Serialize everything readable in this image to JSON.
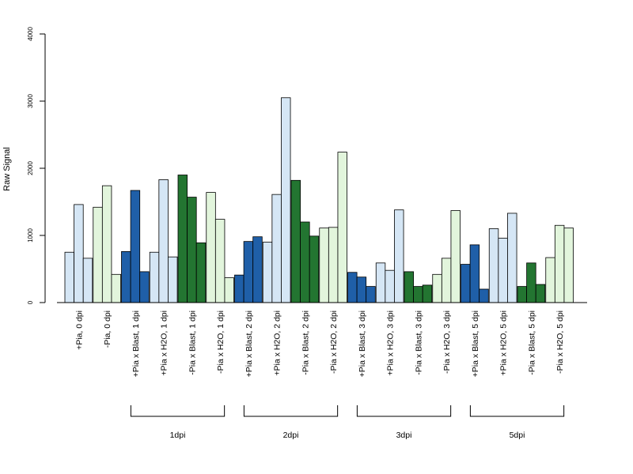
{
  "chart_data": {
    "type": "bar",
    "ylabel": "Raw Signal",
    "ylim": [
      0,
      4000
    ],
    "yticks": [
      "0",
      "1000",
      "2000",
      "3000",
      "4000"
    ],
    "categories": [
      "+Pia, 0 dpi",
      "-Pia, 0 dpi",
      "+Pia x Blast, 1 dpi",
      "+Pia x H2O, 1 dpi",
      "-Pia x Blast, 1 dpi",
      "-Pia x H2O, 1 dpi",
      "+Pia x Blast, 2 dpi",
      "+Pia x H2O, 2 dpi",
      "-Pia x Blast, 2 dpi",
      "-Pia x H2O, 2 dpi",
      "+Pia x Blast, 3 dpi",
      "+Pia x H2O, 3 dpi",
      "-Pia x Blast, 3 dpi",
      "-Pia x H2O, 3 dpi",
      "+Pia x Blast, 5 dpi",
      "+Pia x H2O, 5 dpi",
      "-Pia x Blast, 5 dpi",
      "-Pia x H2O, 5 dpi"
    ],
    "values": [
      [
        750,
        1460,
        660
      ],
      [
        1420,
        1740,
        420
      ],
      [
        760,
        1670,
        460
      ],
      [
        750,
        1830,
        680
      ],
      [
        1900,
        1570,
        890
      ],
      [
        1640,
        1240,
        370
      ],
      [
        410,
        910,
        980
      ],
      [
        900,
        1610,
        3050
      ],
      [
        1820,
        1200,
        990
      ],
      [
        1110,
        1120,
        2240
      ],
      [
        450,
        380,
        240
      ],
      [
        590,
        480,
        1380
      ],
      [
        460,
        240,
        260
      ],
      [
        420,
        660,
        1370
      ],
      [
        570,
        860,
        200
      ],
      [
        1100,
        960,
        1330
      ],
      [
        240,
        590,
        270
      ],
      [
        670,
        1150,
        1110
      ]
    ],
    "bar_colors": [
      "#d5e6f5",
      "#e2f5dc",
      "#1f5fa8",
      "#d5e6f5",
      "#237531",
      "#e2f5dc",
      "#1f5fa8",
      "#d5e6f5",
      "#237531",
      "#e2f5dc",
      "#1f5fa8",
      "#d5e6f5",
      "#237531",
      "#e2f5dc",
      "#1f5fa8",
      "#d5e6f5",
      "#237531",
      "#e2f5dc"
    ],
    "groups": [
      {
        "label": "1dpi",
        "from": 2,
        "to": 5
      },
      {
        "label": "2dpi",
        "from": 6,
        "to": 9
      },
      {
        "label": "3dpi",
        "from": 10,
        "to": 13
      },
      {
        "label": "5dpi",
        "from": 14,
        "to": 17
      }
    ],
    "grid": false,
    "legend": "none"
  }
}
